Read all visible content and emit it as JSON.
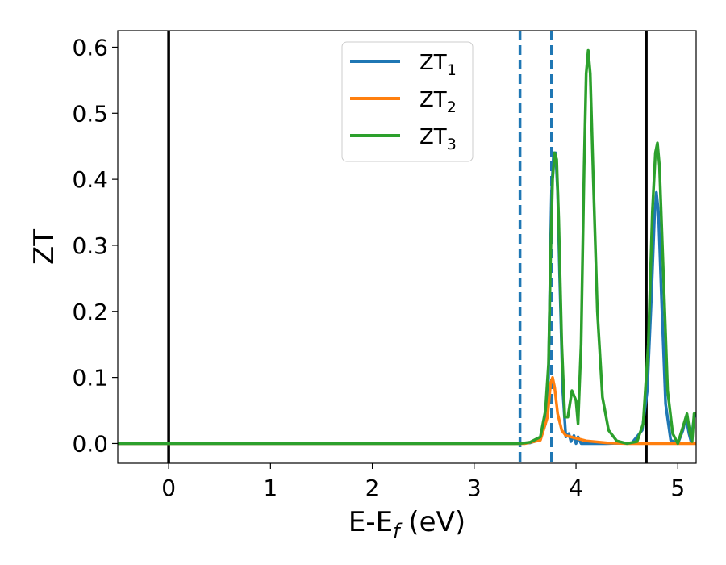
{
  "chart_data": {
    "type": "line",
    "title": "",
    "xlabel": {
      "main": "E-E",
      "sub": "f",
      "suffix": " (eV)"
    },
    "ylabel": "ZT",
    "xlim": [
      -0.5,
      5.18
    ],
    "ylim": [
      -0.03,
      0.625
    ],
    "x_ticks": [
      0,
      1,
      2,
      3,
      4,
      5
    ],
    "x_tick_labels": [
      "0",
      "1",
      "2",
      "3",
      "4",
      "5"
    ],
    "y_ticks": [
      0.0,
      0.1,
      0.2,
      0.3,
      0.4,
      0.5,
      0.6
    ],
    "y_tick_labels": [
      "0.0",
      "0.1",
      "0.2",
      "0.3",
      "0.4",
      "0.5",
      "0.6"
    ],
    "grid": false,
    "legend_position": "top-center",
    "vlines": [
      {
        "x": 0.0,
        "style": "solid",
        "color": "#000000"
      },
      {
        "x": 4.69,
        "style": "solid",
        "color": "#000000"
      },
      {
        "x": 3.45,
        "style": "dashed",
        "color": "#1f77b4"
      },
      {
        "x": 3.76,
        "style": "dashed",
        "color": "#1f77b4"
      }
    ],
    "series": [
      {
        "name": "ZT",
        "subscript": "1",
        "color": "#1f77b4",
        "points": [
          [
            -0.5,
            0.0
          ],
          [
            3.4,
            0.0
          ],
          [
            3.55,
            0.001
          ],
          [
            3.65,
            0.006
          ],
          [
            3.7,
            0.03
          ],
          [
            3.73,
            0.1
          ],
          [
            3.75,
            0.3
          ],
          [
            3.76,
            0.38
          ],
          [
            3.78,
            0.44
          ],
          [
            3.8,
            0.44
          ],
          [
            3.82,
            0.38
          ],
          [
            3.84,
            0.25
          ],
          [
            3.87,
            0.08
          ],
          [
            3.9,
            0.01
          ],
          [
            3.93,
            0.015
          ],
          [
            3.95,
            0.003
          ],
          [
            3.98,
            0.012
          ],
          [
            4.0,
            0.0
          ],
          [
            4.02,
            0.01
          ],
          [
            4.05,
            0.0
          ],
          [
            4.3,
            0.0
          ],
          [
            4.55,
            0.001
          ],
          [
            4.65,
            0.02
          ],
          [
            4.7,
            0.08
          ],
          [
            4.74,
            0.22
          ],
          [
            4.77,
            0.34
          ],
          [
            4.79,
            0.38
          ],
          [
            4.81,
            0.35
          ],
          [
            4.84,
            0.22
          ],
          [
            4.88,
            0.06
          ],
          [
            4.93,
            0.005
          ],
          [
            5.0,
            0.0
          ],
          [
            5.05,
            0.02
          ],
          [
            5.08,
            0.04
          ],
          [
            5.11,
            0.015
          ],
          [
            5.13,
            0.003
          ],
          [
            5.16,
            0.04
          ],
          [
            5.18,
            0.045
          ]
        ]
      },
      {
        "name": "ZT",
        "subscript": "2",
        "color": "#ff7f0e",
        "points": [
          [
            -0.5,
            0.0
          ],
          [
            3.5,
            0.0
          ],
          [
            3.65,
            0.005
          ],
          [
            3.72,
            0.04
          ],
          [
            3.75,
            0.09
          ],
          [
            3.77,
            0.1
          ],
          [
            3.79,
            0.085
          ],
          [
            3.82,
            0.045
          ],
          [
            3.86,
            0.02
          ],
          [
            3.9,
            0.012
          ],
          [
            4.0,
            0.008
          ],
          [
            4.1,
            0.004
          ],
          [
            4.3,
            0.001
          ],
          [
            4.5,
            0.0
          ],
          [
            5.18,
            0.0
          ]
        ]
      },
      {
        "name": "ZT",
        "subscript": "3",
        "color": "#2ca02c",
        "points": [
          [
            -0.5,
            0.0
          ],
          [
            3.45,
            0.0
          ],
          [
            3.55,
            0.002
          ],
          [
            3.65,
            0.01
          ],
          [
            3.7,
            0.05
          ],
          [
            3.73,
            0.12
          ],
          [
            3.75,
            0.28
          ],
          [
            3.77,
            0.4
          ],
          [
            3.79,
            0.44
          ],
          [
            3.81,
            0.43
          ],
          [
            3.83,
            0.34
          ],
          [
            3.86,
            0.15
          ],
          [
            3.89,
            0.04
          ],
          [
            3.92,
            0.04
          ],
          [
            3.96,
            0.08
          ],
          [
            4.0,
            0.065
          ],
          [
            4.02,
            0.03
          ],
          [
            4.05,
            0.15
          ],
          [
            4.08,
            0.42
          ],
          [
            4.1,
            0.56
          ],
          [
            4.12,
            0.595
          ],
          [
            4.14,
            0.56
          ],
          [
            4.17,
            0.4
          ],
          [
            4.21,
            0.2
          ],
          [
            4.26,
            0.07
          ],
          [
            4.32,
            0.02
          ],
          [
            4.4,
            0.004
          ],
          [
            4.5,
            0.0
          ],
          [
            4.6,
            0.003
          ],
          [
            4.66,
            0.03
          ],
          [
            4.71,
            0.15
          ],
          [
            4.75,
            0.35
          ],
          [
            4.78,
            0.44
          ],
          [
            4.8,
            0.455
          ],
          [
            4.82,
            0.42
          ],
          [
            4.86,
            0.25
          ],
          [
            4.9,
            0.08
          ],
          [
            4.95,
            0.015
          ],
          [
            5.0,
            0.0
          ],
          [
            5.05,
            0.025
          ],
          [
            5.09,
            0.045
          ],
          [
            5.12,
            0.015
          ],
          [
            5.14,
            0.003
          ],
          [
            5.16,
            0.045
          ],
          [
            5.18,
            0.045
          ]
        ]
      }
    ]
  }
}
